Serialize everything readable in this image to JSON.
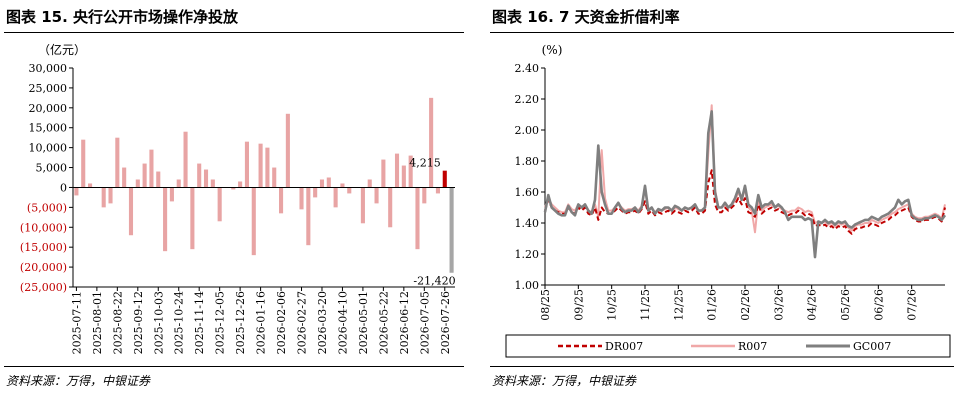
{
  "left_chart": {
    "title": "图表 15. 央行公开市场操作净投放",
    "source": "资料来源：万得，中银证券",
    "colors": {
      "positive": "#e8a4a4",
      "negative": "#e8a4a4",
      "latest": "#c00000",
      "negative_label": "#c00000"
    },
    "chart_data": {
      "type": "bar",
      "title": "",
      "ylabel": "（亿元）",
      "ylim": [
        -25000,
        30000
      ],
      "yticks": [
        30000,
        25000,
        20000,
        15000,
        10000,
        5000,
        0,
        -5000,
        -10000,
        -15000,
        -20000,
        -25000
      ],
      "ytick_labels": [
        "30,000",
        "25,000",
        "20,000",
        "15,000",
        "10,000",
        "5,000",
        "0",
        "(5,000)",
        "(10,000)",
        "(15,000)",
        "(20,000)",
        "(25,000)"
      ],
      "xtick_labels": [
        "2025-07-11",
        "2025-08-01",
        "2025-08-22",
        "2025-09-12",
        "2025-10-03",
        "2025-10-24",
        "2025-11-14",
        "2025-12-05",
        "2025-12-26",
        "2026-01-16",
        "2026-02-06",
        "2026-02-27",
        "2026-03-20",
        "2026-04-10",
        "2026-05-01",
        "2026-05-22",
        "2026-06-12",
        "2026-07-05",
        "2026-07-26"
      ],
      "values": [
        -2000,
        12000,
        1000,
        0,
        -5000,
        -4000,
        12500,
        5000,
        -12000,
        2000,
        6000,
        9500,
        4000,
        -16000,
        -3500,
        2000,
        14000,
        -15500,
        6000,
        4500,
        2000,
        -8500,
        0,
        -500,
        1500,
        11500,
        -17000,
        11000,
        10000,
        5000,
        -6500,
        18500,
        0,
        -5500,
        -14500,
        -2500,
        2000,
        2500,
        -5000,
        1000,
        -1500,
        0,
        -9000,
        2000,
        -4000,
        7000,
        -10000,
        8500,
        5500,
        8000,
        -15500,
        -4000,
        22500,
        -1500,
        4215,
        -21420
      ],
      "data_labels": [
        {
          "text": "4,215",
          "index": 54
        },
        {
          "text": "-21,420",
          "index": 55
        }
      ],
      "grid": false,
      "legend": "none"
    }
  },
  "right_chart": {
    "title": "图表 16. 7 天资金折借利率",
    "source": "资料来源：万得，中银证券",
    "chart_data": {
      "type": "line",
      "title": "",
      "ylabel": "(%)",
      "ylim": [
        1.0,
        2.4
      ],
      "yticks": [
        1.0,
        1.2,
        1.4,
        1.6,
        1.8,
        2.0,
        2.2,
        2.4
      ],
      "ytick_labels": [
        "1.00",
        "1.20",
        "1.40",
        "1.60",
        "1.80",
        "2.00",
        "2.20",
        "2.40"
      ],
      "xtick_labels": [
        "08/25",
        "09/25",
        "10/25",
        "11/25",
        "12/25",
        "01/26",
        "02/26",
        "03/26",
        "04/26",
        "05/26",
        "06/26",
        "07/26"
      ],
      "legend": "bottom",
      "series": [
        {
          "name": "DR007",
          "color": "#c00000",
          "dash": "5,3",
          "values": [
            1.48,
            1.55,
            1.5,
            1.48,
            1.47,
            1.46,
            1.46,
            1.5,
            1.47,
            1.46,
            1.5,
            1.48,
            1.5,
            1.46,
            1.45,
            1.5,
            1.42,
            1.5,
            1.47,
            1.46,
            1.46,
            1.48,
            1.5,
            1.48,
            1.46,
            1.47,
            1.47,
            1.48,
            1.46,
            1.49,
            1.54,
            1.46,
            1.48,
            1.45,
            1.47,
            1.46,
            1.47,
            1.48,
            1.46,
            1.48,
            1.47,
            1.46,
            1.48,
            1.47,
            1.48,
            1.5,
            1.46,
            1.46,
            1.48,
            1.66,
            1.74,
            1.52,
            1.47,
            1.47,
            1.5,
            1.48,
            1.5,
            1.52,
            1.56,
            1.52,
            1.56,
            1.47,
            1.46,
            1.44,
            1.52,
            1.46,
            1.48,
            1.49,
            1.5,
            1.48,
            1.49,
            1.47,
            1.46,
            1.45,
            1.46,
            1.46,
            1.48,
            1.47,
            1.45,
            1.46,
            1.45,
            1.38,
            1.39,
            1.38,
            1.39,
            1.37,
            1.38,
            1.36,
            1.38,
            1.37,
            1.38,
            1.35,
            1.33,
            1.36,
            1.37,
            1.37,
            1.38,
            1.38,
            1.4,
            1.39,
            1.38,
            1.4,
            1.41,
            1.42,
            1.44,
            1.45,
            1.47,
            1.48,
            1.49,
            1.5,
            1.44,
            1.42,
            1.41,
            1.41,
            1.42,
            1.42,
            1.43,
            1.44,
            1.43,
            1.41,
            1.5
          ]
        },
        {
          "name": "R007",
          "color": "#f0a8a8",
          "dash": "",
          "values": [
            1.5,
            1.56,
            1.52,
            1.5,
            1.48,
            1.47,
            1.47,
            1.52,
            1.49,
            1.48,
            1.52,
            1.5,
            1.52,
            1.48,
            1.47,
            1.52,
            1.44,
            1.87,
            1.56,
            1.48,
            1.48,
            1.5,
            1.52,
            1.5,
            1.48,
            1.49,
            1.49,
            1.5,
            1.48,
            1.51,
            1.62,
            1.48,
            1.5,
            1.47,
            1.49,
            1.48,
            1.49,
            1.5,
            1.48,
            1.5,
            1.49,
            1.48,
            1.5,
            1.49,
            1.5,
            1.52,
            1.48,
            1.48,
            1.5,
            1.85,
            2.16,
            1.62,
            1.5,
            1.5,
            1.52,
            1.5,
            1.52,
            1.54,
            1.6,
            1.55,
            1.62,
            1.5,
            1.48,
            1.34,
            1.55,
            1.48,
            1.5,
            1.51,
            1.52,
            1.5,
            1.51,
            1.49,
            1.48,
            1.47,
            1.48,
            1.48,
            1.5,
            1.49,
            1.47,
            1.48,
            1.47,
            1.4,
            1.41,
            1.4,
            1.41,
            1.39,
            1.4,
            1.38,
            1.4,
            1.39,
            1.4,
            1.37,
            1.35,
            1.38,
            1.39,
            1.39,
            1.4,
            1.4,
            1.42,
            1.41,
            1.4,
            1.42,
            1.43,
            1.44,
            1.46,
            1.47,
            1.49,
            1.5,
            1.51,
            1.52,
            1.46,
            1.44,
            1.43,
            1.43,
            1.44,
            1.44,
            1.45,
            1.46,
            1.45,
            1.43,
            1.52
          ]
        },
        {
          "name": "GC007",
          "color": "#7f7f7f",
          "dash": "",
          "values": [
            1.47,
            1.58,
            1.5,
            1.48,
            1.46,
            1.45,
            1.45,
            1.51,
            1.47,
            1.45,
            1.52,
            1.5,
            1.52,
            1.48,
            1.46,
            1.55,
            1.9,
            1.6,
            1.52,
            1.46,
            1.46,
            1.5,
            1.53,
            1.49,
            1.47,
            1.48,
            1.48,
            1.5,
            1.47,
            1.5,
            1.64,
            1.48,
            1.5,
            1.46,
            1.49,
            1.48,
            1.5,
            1.5,
            1.48,
            1.51,
            1.5,
            1.48,
            1.5,
            1.49,
            1.5,
            1.52,
            1.48,
            1.48,
            1.5,
            1.98,
            2.12,
            1.6,
            1.5,
            1.5,
            1.53,
            1.5,
            1.52,
            1.56,
            1.62,
            1.55,
            1.64,
            1.52,
            1.5,
            1.46,
            1.58,
            1.5,
            1.52,
            1.52,
            1.54,
            1.5,
            1.52,
            1.5,
            1.47,
            1.42,
            1.44,
            1.44,
            1.44,
            1.44,
            1.42,
            1.43,
            1.42,
            1.18,
            1.41,
            1.4,
            1.42,
            1.4,
            1.41,
            1.39,
            1.41,
            1.4,
            1.41,
            1.38,
            1.37,
            1.39,
            1.4,
            1.41,
            1.42,
            1.42,
            1.44,
            1.43,
            1.42,
            1.44,
            1.45,
            1.46,
            1.48,
            1.5,
            1.55,
            1.52,
            1.54,
            1.55,
            1.45,
            1.43,
            1.42,
            1.42,
            1.43,
            1.43,
            1.44,
            1.45,
            1.44,
            1.42,
            1.45
          ]
        }
      ]
    }
  }
}
